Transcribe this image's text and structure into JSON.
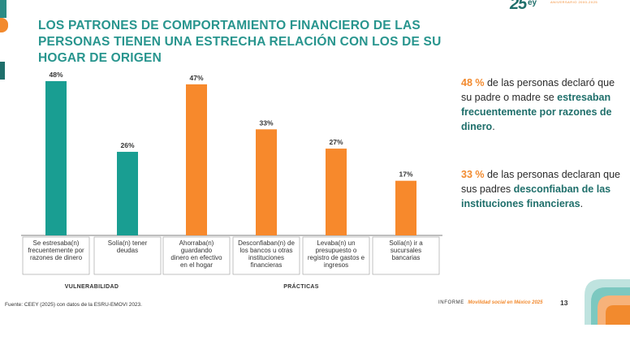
{
  "logo": {
    "text": "25",
    "sub": "ANIVERSARIO 2000-2025",
    "brand": "ey"
  },
  "title": {
    "line1": "LOS PATRONES DE COMPORTAMIENTO FINANCIERO DE LAS",
    "line2": "PERSONAS TIENEN UNA ESTRECHA RELACIÓN CON LOS DE SU",
    "line3": "HOGAR DE ORIGEN"
  },
  "chart_data": {
    "type": "bar",
    "title": "",
    "xlabel": "",
    "ylabel": "",
    "ylim": [
      0,
      50
    ],
    "grid": false,
    "value_format": "{v}%",
    "categories": [
      [
        "Se estresaba(n)",
        "frecuentemente por",
        "razones de dinero"
      ],
      [
        "Solía(n) tener",
        "deudas"
      ],
      [
        "Ahorraba(n)",
        "guardando",
        "dinero en efectivo",
        "en el hogar"
      ],
      [
        "Desconfiaban(n) de",
        "los bancos u otras",
        "instituciones",
        "financieras"
      ],
      [
        "Levaba(n) un",
        "presupuesto o",
        "registro de gastos e",
        "ingresos"
      ],
      [
        "Solía(n) ir a",
        "sucursales",
        "bancarias"
      ]
    ],
    "values": [
      48,
      26,
      47,
      33,
      27,
      17
    ],
    "colors": [
      "#199e92",
      "#199e92",
      "#f7892c",
      "#f7892c",
      "#f7892c",
      "#f7892c"
    ],
    "groups": [
      {
        "label": "VULNERABILIDAD",
        "start": 0,
        "end": 1
      },
      {
        "label": "PRÁCTICAS",
        "start": 2,
        "end": 5
      }
    ]
  },
  "callout1": {
    "num": "48 %",
    "text_a": " de las personas declaró que su padre o madre se ",
    "em": "estresaban frecuentemente por razones de dinero",
    "text_b": "."
  },
  "callout2": {
    "num": "33 %",
    "text_a": " de las personas declaran que sus padres ",
    "em": "desconfiaban de las instituciones financieras",
    "text_b": "."
  },
  "footnote": "Fuente: CEEY (2025) con datos de la ESRU-EMOVI 2023.",
  "report": {
    "label": "INFORME",
    "title": "Movilidad social en México 2025"
  },
  "page_number": "13"
}
